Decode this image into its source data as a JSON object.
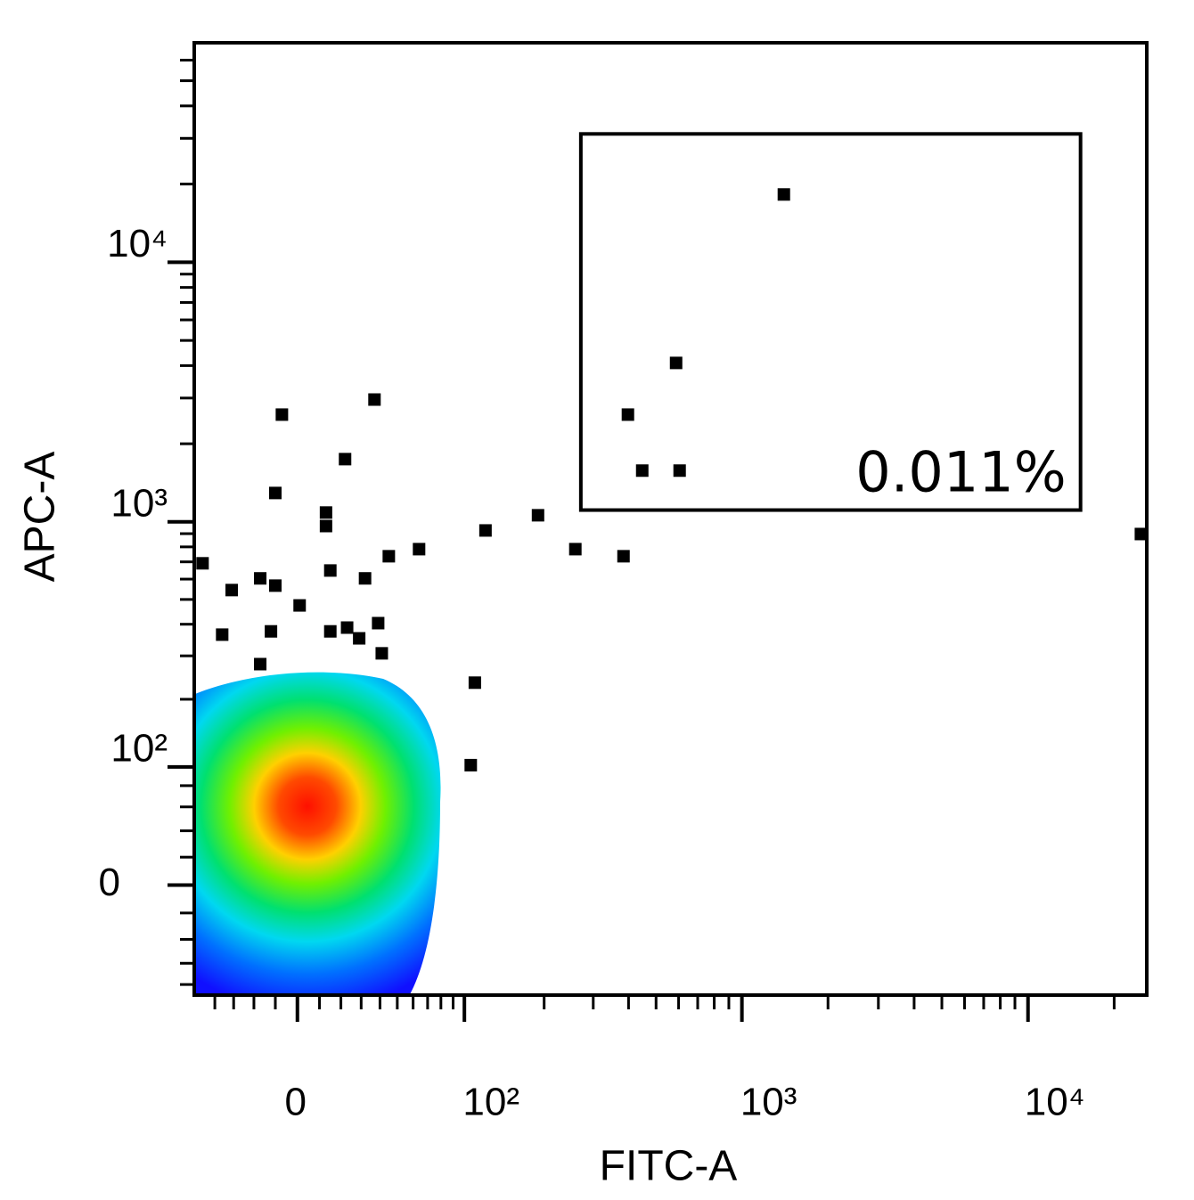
{
  "chart_data": {
    "type": "scatter",
    "x_label": "FITC-A",
    "y_label": "APC-A",
    "scale": "biexponential",
    "xlim": [
      -52,
      26000
    ],
    "ylim": [
      -91,
      70000
    ],
    "xticks": [
      0,
      {
        "value": 100,
        "label": "10²"
      },
      {
        "value": 1000,
        "label": "10³"
      },
      {
        "value": 10000,
        "label": "10⁴"
      }
    ],
    "yticks": [
      0,
      {
        "value": 100,
        "label": "10²"
      },
      {
        "value": 1000,
        "label": "10³"
      },
      {
        "value": 10000,
        "label": "10⁴"
      }
    ],
    "xminor": [
      -40,
      -30,
      -20,
      -10,
      10,
      20,
      30,
      40,
      50,
      60,
      70,
      80,
      90,
      200,
      300,
      400,
      500,
      600,
      700,
      800,
      900,
      2000,
      3000,
      4000,
      5000,
      6000,
      7000,
      8000,
      9000,
      20000
    ],
    "yminor": [
      -80,
      -60,
      -40,
      -20,
      20,
      40,
      60,
      80,
      200,
      300,
      400,
      500,
      600,
      700,
      800,
      900,
      2000,
      3000,
      4000,
      5000,
      6000,
      7000,
      8000,
      9000,
      20000,
      30000,
      40000,
      50000,
      60000
    ],
    "color": "#000000",
    "x": [
      1402,
      588,
      398,
      447,
      605,
      24800,
      190,
      121,
      259,
      384,
      64,
      45,
      37,
      -7,
      22,
      -10,
      13,
      13,
      15,
      32,
      -17,
      -10,
      -31,
      -47,
      1,
      -36,
      -12,
      15,
      23,
      39,
      29,
      41,
      110,
      106,
      -17
    ],
    "values": [
      18240,
      4096,
      2590,
      1576,
      1576,
      897,
      1060,
      926,
      784,
      736,
      784,
      736,
      2960,
      2590,
      1745,
      1292,
      1086,
      963,
      648,
      604,
      604,
      566,
      544,
      691,
      474,
      364,
      375,
      375,
      388,
      404,
      352,
      307,
      234,
      102,
      278
    ],
    "gate": {
      "x": [
        271,
        15260
      ],
      "y": [
        1110,
        31200
      ],
      "label": "0.011%"
    }
  }
}
